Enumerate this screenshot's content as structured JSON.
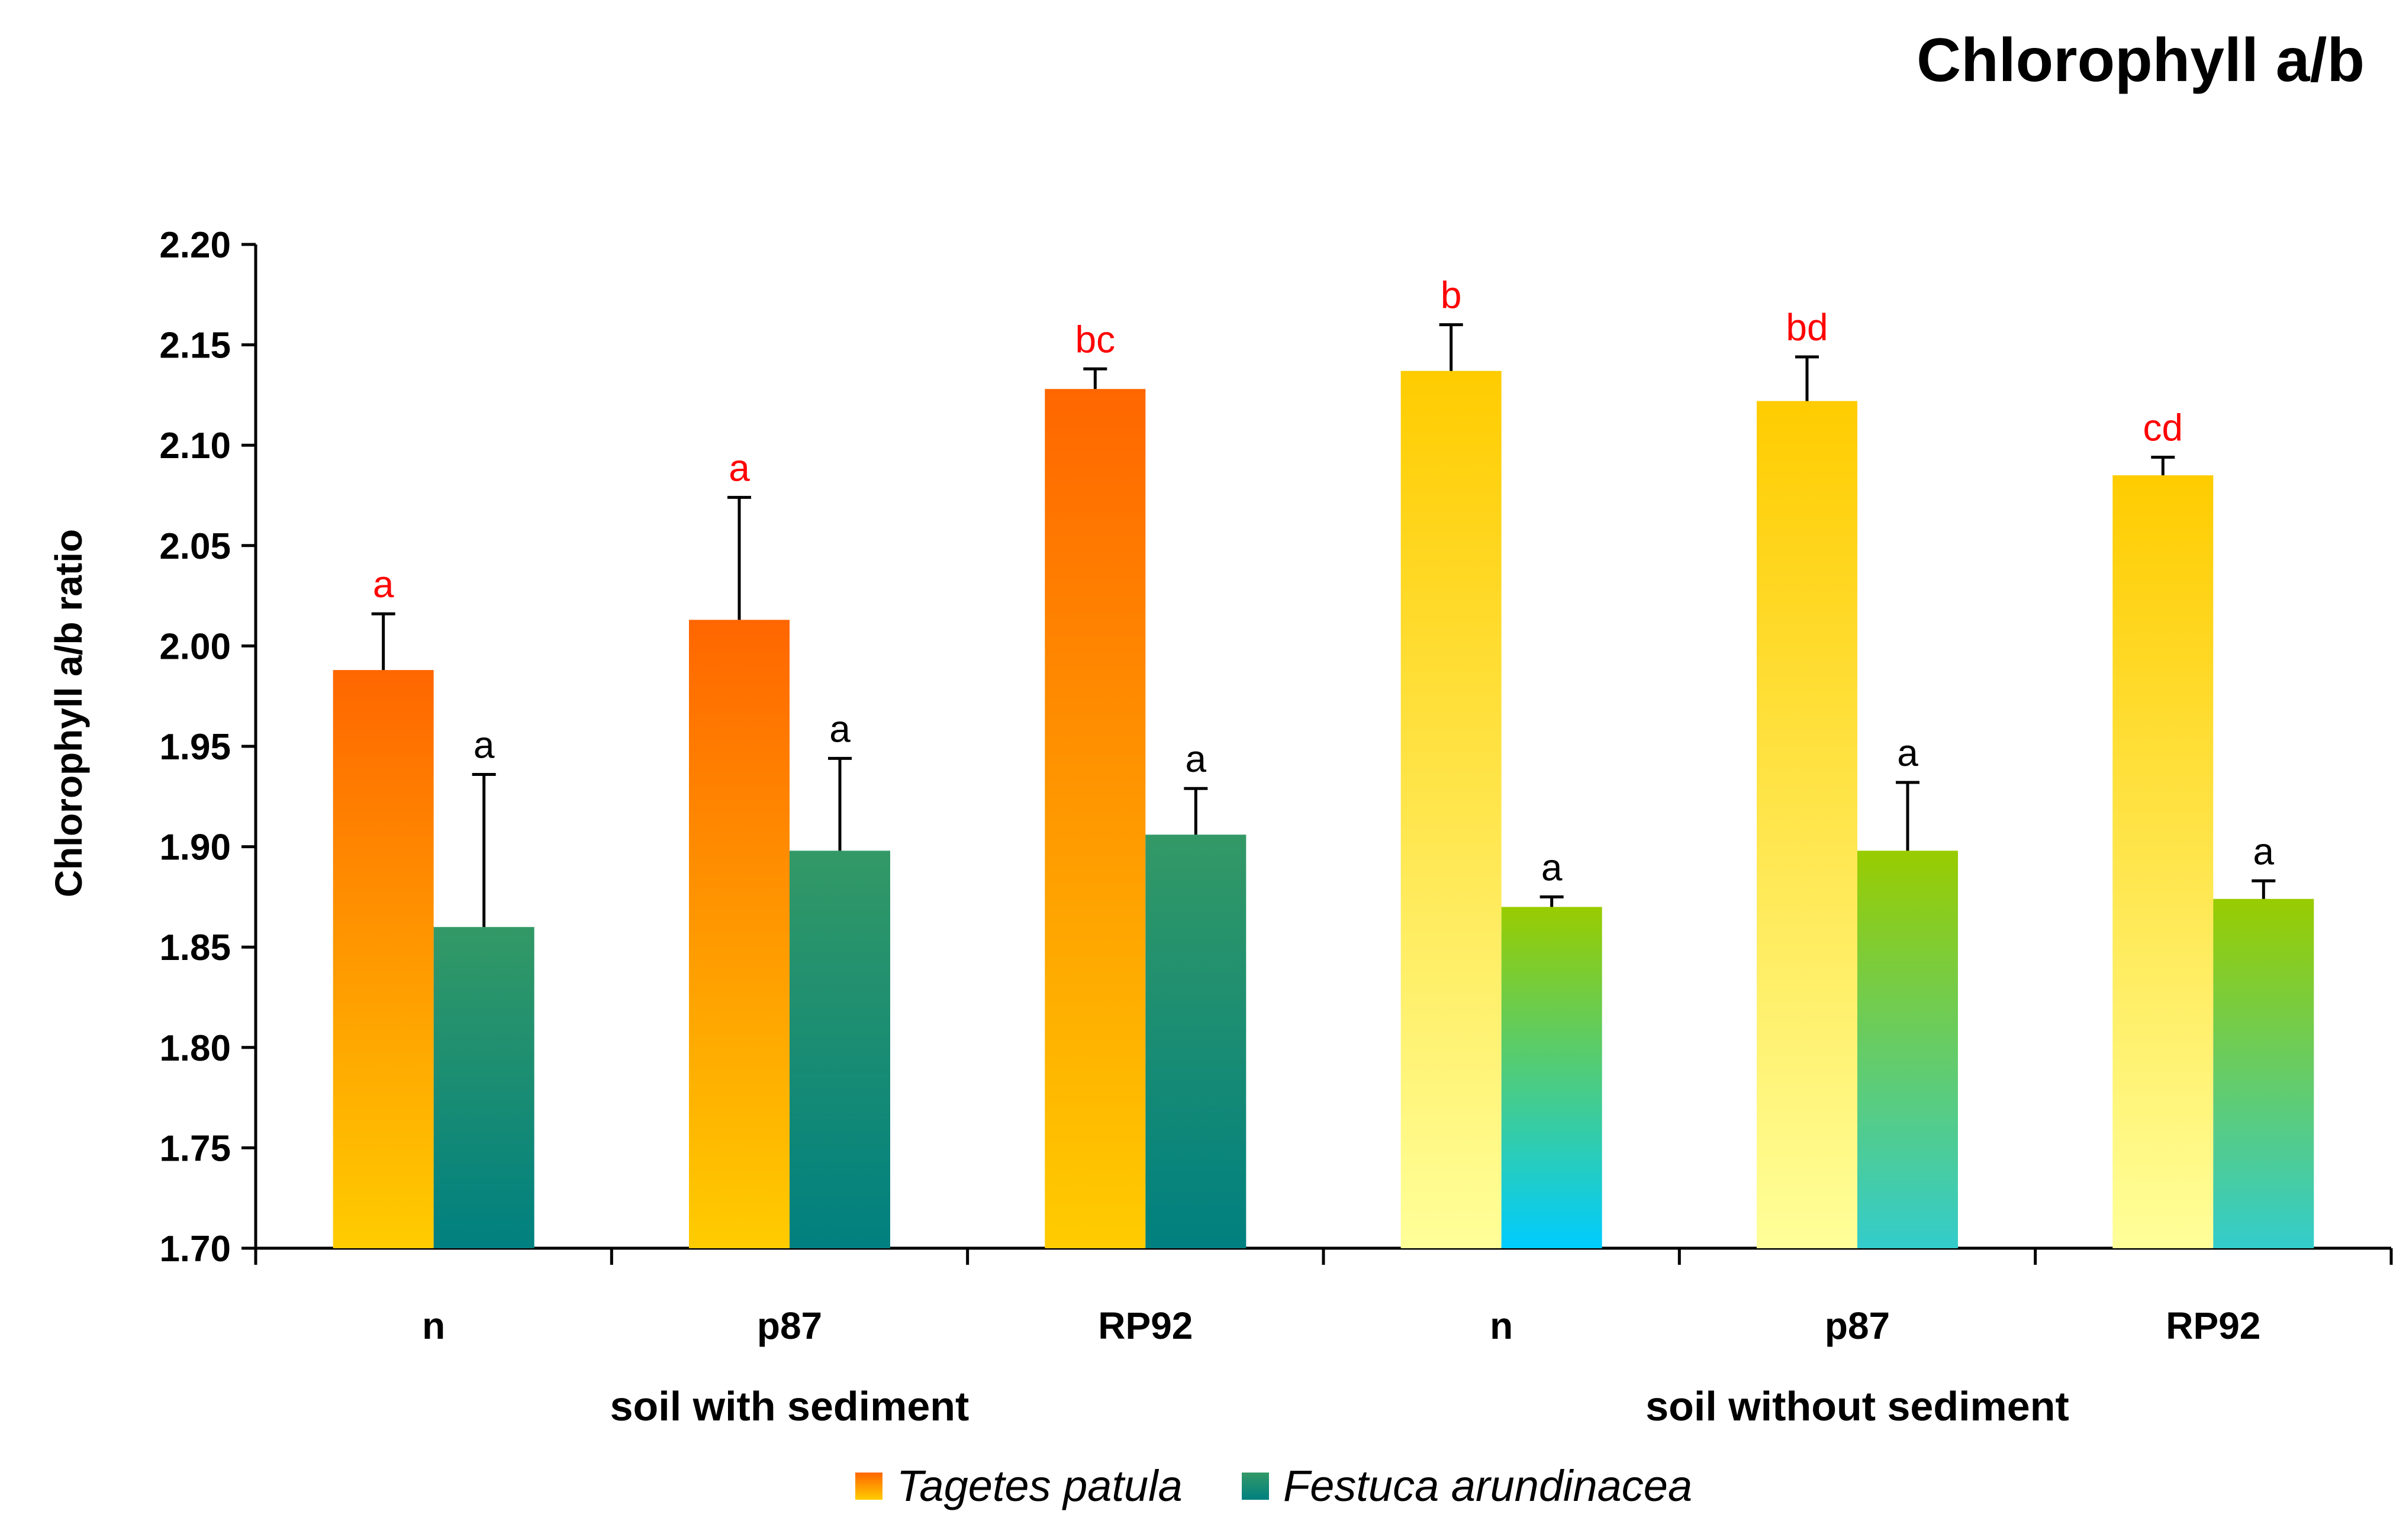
{
  "chart_data": {
    "type": "bar",
    "title": "Chlorophyll a/b",
    "ylabel": "Chlorophyll a/b ratio",
    "xlabel": "",
    "ylim": [
      1.7,
      2.2
    ],
    "yticks": [
      "1.70",
      "1.75",
      "1.80",
      "1.85",
      "1.90",
      "1.95",
      "2.00",
      "2.05",
      "2.10",
      "2.15",
      "2.20"
    ],
    "categories": [
      "n",
      "p87",
      "RP92",
      "n",
      "p87",
      "RP92"
    ],
    "groups": [
      {
        "label": "soil with sediment",
        "start": 0,
        "end": 2
      },
      {
        "label": "soil without sediment",
        "start": 3,
        "end": 5
      }
    ],
    "series": [
      {
        "name": "Tagetes patula",
        "values": [
          1.988,
          2.013,
          2.128,
          2.137,
          2.122,
          2.085
        ],
        "errors": [
          0.028,
          0.061,
          0.01,
          0.023,
          0.022,
          0.009
        ],
        "significance": [
          "a",
          "a",
          "bc",
          "b",
          "bd",
          "cd"
        ],
        "significance_color": "#ff0000",
        "gradients": [
          {
            "top": "#ff6600",
            "bottom": "#ffcc00"
          },
          {
            "top": "#ff6600",
            "bottom": "#ffcc00"
          },
          {
            "top": "#ff6600",
            "bottom": "#ffcc00"
          },
          {
            "top": "#ffcc00",
            "bottom": "#ffff99"
          },
          {
            "top": "#ffcc00",
            "bottom": "#ffff99"
          },
          {
            "top": "#ffcc00",
            "bottom": "#ffff99"
          }
        ]
      },
      {
        "name": "Festuca arundinacea",
        "values": [
          1.86,
          1.898,
          1.906,
          1.87,
          1.898,
          1.874
        ],
        "errors": [
          0.076,
          0.046,
          0.023,
          0.005,
          0.034,
          0.009
        ],
        "significance": [
          "a",
          "a",
          "a",
          "a",
          "a",
          "a"
        ],
        "significance_color": "#000000",
        "gradients": [
          {
            "top": "#339966",
            "bottom": "#008080"
          },
          {
            "top": "#339966",
            "bottom": "#008080"
          },
          {
            "top": "#339966",
            "bottom": "#008080"
          },
          {
            "top": "#99cc00",
            "bottom": "#00ccff"
          },
          {
            "top": "#99cc00",
            "bottom": "#33cccc"
          },
          {
            "top": "#99cc00",
            "bottom": "#33cccc"
          }
        ]
      }
    ],
    "legend": {
      "placement": "bottom-center",
      "entries": [
        {
          "label": "Tagetes patula",
          "top": "#ff6600",
          "bottom": "#ffcc00"
        },
        {
          "label": "Festuca arundinacea",
          "top": "#339966",
          "bottom": "#008080"
        }
      ]
    },
    "grid": false
  }
}
